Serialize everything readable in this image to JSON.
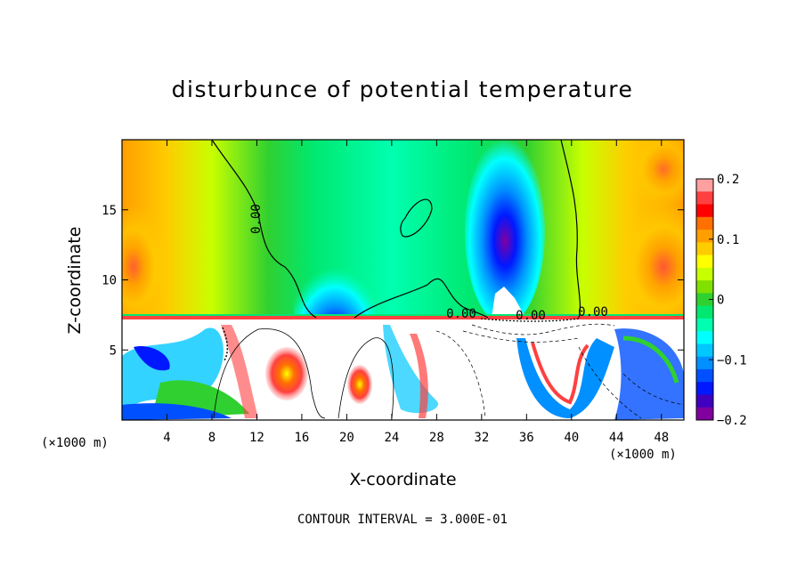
{
  "chart_data": {
    "type": "heatmap",
    "title": "disturbunce of potential temperature",
    "xlabel": "X-coordinate",
    "ylabel": "Z-coordinate",
    "x_units": "(×1000 m)",
    "x_range": [
      0,
      50
    ],
    "y_range": [
      0,
      20
    ],
    "x_ticks": [
      4,
      8,
      12,
      16,
      20,
      24,
      28,
      32,
      36,
      40,
      44,
      48
    ],
    "x_tick_labels": [
      "4",
      "8",
      "12",
      "16",
      "20",
      "24",
      "28",
      "32",
      "36",
      "40",
      "44",
      "48"
    ],
    "y_ticks": [
      5,
      10,
      15
    ],
    "y_tick_labels": [
      "5",
      "10",
      "15"
    ],
    "colorbar": {
      "range": [
        -0.2,
        0.2
      ],
      "tick_values": [
        0.2,
        0.1,
        0,
        -0.1,
        -0.2
      ],
      "tick_labels": [
        "0.2",
        "0.1",
        "0",
        "−0.1",
        "−0.2"
      ],
      "colors": [
        "#ffa0a0",
        "#ff4040",
        "#ff0000",
        "#ff7000",
        "#ff9e00",
        "#ffcc00",
        "#ffff00",
        "#c8ff00",
        "#80e000",
        "#30d030",
        "#00e870",
        "#00ffb0",
        "#00ffff",
        "#00c8ff",
        "#0090ff",
        "#0050ff",
        "#0018ff",
        "#4000c0",
        "#8000a0"
      ]
    },
    "contour_labels": [
      "0.00",
      "0.00",
      "0.00",
      "0.00"
    ],
    "contour_interval": "CONTOUR INTERVAL = 3.000E-01"
  }
}
